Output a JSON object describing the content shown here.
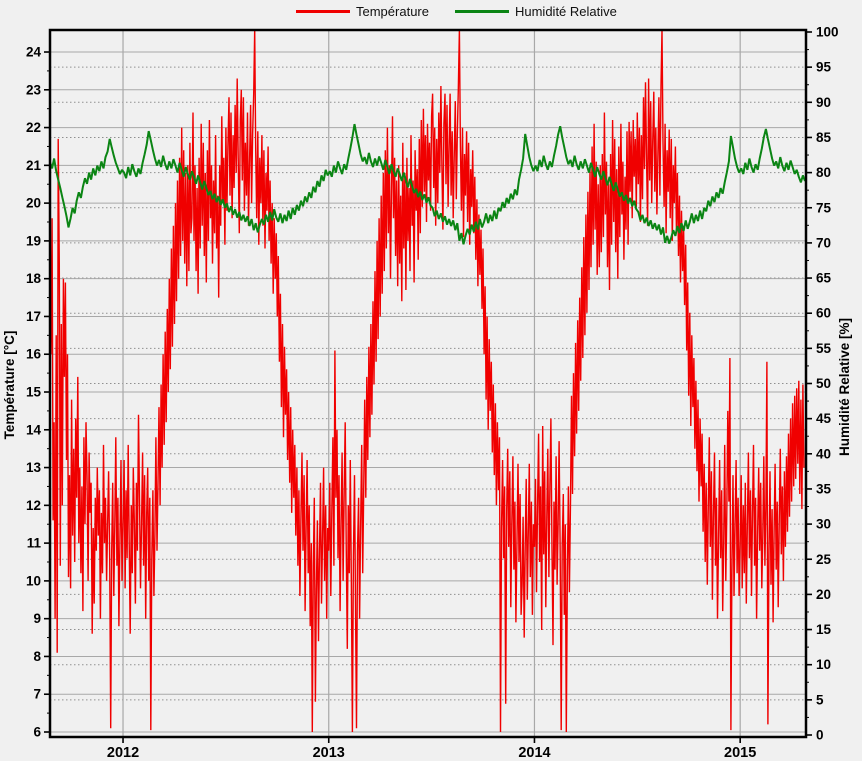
{
  "legend": {
    "items": [
      {
        "label": "Température",
        "color": "#f00000"
      },
      {
        "label": "Humidité Relative",
        "color": "#0b8514"
      }
    ]
  },
  "axes": {
    "x": {
      "min": 2011.645,
      "max": 2015.32,
      "tick_years": [
        2012,
        2013,
        2014,
        2015
      ],
      "tick_labels": [
        "2012",
        "2013",
        "2014",
        "2015"
      ]
    },
    "y_left": {
      "title": "Température [°C]",
      "tick_min": 6,
      "tick_max": 24,
      "tick_step": 1,
      "minor_step": 0.5,
      "color": "#000000"
    },
    "y_right": {
      "title": "Humidité Relative [%]",
      "tick_min": 0,
      "tick_max": 100,
      "tick_step": 5,
      "minor_step": 2.5,
      "color": "#000000"
    }
  },
  "grid": {
    "solid_color": "#a8a8a8",
    "dotted_color": "#8f8f8f",
    "frame_color": "#000000"
  },
  "chart_data": {
    "type": "line",
    "title": "",
    "xlabel": "",
    "x_unit": "year",
    "x_range": [
      2011.645,
      2015.32
    ],
    "left_axis": {
      "label": "Température [°C]",
      "range_ticks": [
        6,
        24
      ]
    },
    "right_axis": {
      "label": "Humidité Relative [%]",
      "range_ticks": [
        0,
        100
      ]
    },
    "legend_position": "top-center",
    "grid": "on",
    "series": [
      {
        "name": "Température",
        "axis": "left",
        "color": "#f00000",
        "width": 1.4,
        "t0": 2011.645,
        "dt": 0.005,
        "values": [
          20.2,
          16.0,
          19.6,
          11.6,
          14.2,
          9.0,
          16.5,
          8.1,
          21.7,
          18.4,
          10.4,
          16.8,
          12.0,
          18.0,
          15.4,
          17.9,
          13.2,
          16.0,
          10.1,
          12.8,
          9.8,
          14.8,
          11.2,
          13.5,
          10.5,
          14.3,
          12.2,
          15.4,
          11.0,
          13.0,
          10.2,
          12.5,
          9.2,
          13.8,
          11.5,
          14.2,
          12.8,
          10.0,
          13.4,
          11.8,
          12.6,
          8.6,
          11.4,
          9.4,
          12.2,
          10.8,
          13.0,
          11.2,
          12.4,
          9.0,
          11.8,
          10.2,
          13.6,
          11.0,
          12.2,
          10.0,
          11.5,
          12.9,
          10.6,
          6.1,
          10.8,
          12.6,
          9.6,
          11.5,
          13.8,
          10.4,
          12.2,
          8.8,
          11.0,
          13.2,
          10.0,
          11.4,
          13.2,
          9.8,
          12.4,
          10.6,
          13.6,
          11.0,
          8.6,
          12.0,
          10.2,
          13.0,
          11.6,
          9.4,
          12.6,
          10.8,
          14.4,
          12.2,
          9.8,
          11.4,
          13.4,
          10.4,
          12.8,
          9.0,
          11.8,
          13.0,
          10.0,
          12.2,
          6.05,
          10.6,
          12.4,
          9.6,
          11.2,
          13.8,
          10.8,
          12.6,
          14.6,
          12.0,
          15.2,
          13.0,
          16.0,
          13.6,
          16.6,
          14.2,
          17.2,
          15.0,
          18.0,
          15.6,
          18.8,
          16.2,
          19.4,
          16.8,
          20.0,
          17.4,
          20.6,
          18.0,
          21.2,
          18.6,
          22.0,
          19.0,
          21.4,
          18.4,
          20.8,
          17.8,
          21.0,
          18.2,
          21.6,
          19.2,
          19.6,
          22.4,
          19.0,
          21.0,
          18.2,
          20.4,
          17.6,
          21.2,
          18.8,
          22.1,
          19.4,
          21.6,
          18.6,
          20.8,
          17.9,
          21.4,
          19.0,
          22.2,
          19.6,
          21.0,
          18.4,
          20.6,
          19.2,
          21.8,
          18.8,
          20.2,
          17.5,
          21.0,
          19.4,
          22.3,
          20.0,
          21.2,
          18.9,
          22.0,
          19.8,
          21.5,
          22.8,
          20.2,
          22.4,
          19.6,
          21.8,
          20.4,
          22.6,
          20.8,
          23.3,
          21.2,
          19.2,
          22.2,
          23.0,
          20.6,
          22.8,
          19.8,
          21.6,
          20.2,
          22.4,
          19.4,
          21.0,
          22.6,
          20.0,
          21.8,
          22.9,
          24.6,
          21.4,
          19.6,
          21.9,
          18.9,
          21.2,
          20.0,
          21.8,
          19.4,
          21.4,
          18.8,
          20.8,
          19.8,
          21.5,
          19.0,
          20.6,
          18.4,
          20.0,
          17.6,
          19.6,
          18.0,
          19.2,
          17.0,
          18.6,
          15.8,
          17.6,
          14.6,
          16.8,
          13.8,
          16.2,
          14.4,
          15.6,
          13.2,
          15.0,
          12.6,
          14.6,
          11.8,
          14.0,
          12.2,
          13.6,
          11.2,
          13.0,
          10.4,
          12.4,
          9.6,
          11.8,
          13.4,
          10.8,
          12.8,
          9.2,
          11.4,
          13.2,
          10.2,
          12.0,
          8.8,
          11.0,
          6.0,
          10.4,
          12.2,
          6.8,
          9.8,
          11.6,
          8.4,
          10.8,
          12.6,
          9.4,
          11.2,
          13.0,
          10.0,
          12.0,
          9.0,
          11.4,
          10.8,
          12.6,
          9.6,
          11.8,
          13.8,
          10.4,
          16.1,
          12.2,
          14.0,
          10.6,
          12.8,
          9.2,
          11.6,
          13.4,
          10.0,
          12.4,
          14.2,
          11.0,
          8.2,
          12.0,
          10.2,
          13.2,
          9.8,
          6.0,
          10.6,
          12.8,
          9.4,
          6.1,
          10.8,
          12.2,
          9.0,
          11.4,
          13.6,
          10.2,
          12.4,
          14.8,
          12.2,
          15.4,
          13.2,
          16.2,
          13.8,
          16.8,
          14.4,
          17.4,
          15.2,
          18.2,
          15.8,
          19.0,
          16.4,
          19.6,
          17.0,
          20.2,
          17.6,
          20.8,
          18.2,
          21.4,
          18.8,
          22.0,
          19.2,
          21.0,
          18.0,
          20.4,
          22.3,
          19.6,
          21.2,
          18.6,
          20.6,
          17.8,
          21.0,
          18.4,
          20.2,
          17.4,
          21.6,
          18.8,
          20.8,
          17.7,
          21.2,
          19.0,
          20.4,
          18.2,
          21.8,
          19.4,
          20.6,
          17.9,
          21.4,
          19.8,
          20.9,
          18.5,
          21.7,
          19.2,
          22.2,
          19.9,
          22.5,
          20.3,
          21.8,
          19.5,
          22.1,
          20.6,
          21.6,
          19.8,
          22.3,
          22.9,
          20.4,
          22.0,
          19.4,
          21.7,
          20.0,
          22.4,
          20.8,
          23.1,
          21.0,
          19.3,
          22.1,
          22.9,
          20.5,
          22.6,
          19.9,
          21.5,
          22.9,
          20.2,
          21.9,
          19.6,
          21.2,
          22.7,
          20.1,
          21.8,
          23.0,
          24.6,
          21.5,
          19.8,
          22.0,
          19.1,
          21.3,
          20.2,
          21.9,
          19.5,
          21.6,
          18.9,
          20.9,
          19.9,
          21.4,
          19.2,
          20.7,
          18.5,
          20.1,
          17.8,
          19.7,
          18.1,
          19.3,
          17.2,
          18.8,
          16.0,
          17.8,
          14.8,
          17.0,
          14.0,
          16.4,
          14.5,
          15.8,
          13.4,
          15.2,
          12.8,
          14.7,
          12.0,
          14.2,
          12.4,
          13.8,
          6.0,
          11.4,
          13.2,
          10.6,
          12.5,
          6.75,
          11.9,
          13.5,
          10.9,
          12.9,
          9.3,
          11.5,
          13.3,
          10.3,
          12.1,
          8.9,
          11.1,
          13.1,
          10.5,
          12.3,
          9.1,
          9.9,
          11.7,
          8.5,
          10.9,
          12.7,
          9.5,
          11.3,
          13.1,
          10.1,
          12.1,
          9.1,
          11.5,
          10.9,
          12.7,
          9.7,
          11.9,
          13.9,
          10.5,
          12.5,
          8.7,
          14.1,
          10.7,
          12.9,
          9.3,
          11.7,
          13.5,
          10.1,
          12.5,
          14.3,
          11.1,
          8.3,
          12.1,
          10.3,
          13.3,
          9.9,
          11.5,
          13.7,
          10.7,
          6.05,
          10.9,
          12.3,
          9.1,
          11.5,
          6.0,
          10.3,
          12.5,
          9.7,
          12.1,
          14.9,
          12.3,
          15.5,
          13.3,
          16.3,
          13.9,
          16.9,
          14.5,
          17.5,
          15.3,
          18.3,
          15.9,
          19.1,
          16.5,
          19.7,
          17.1,
          20.3,
          17.7,
          20.9,
          18.3,
          21.5,
          18.9,
          22.1,
          19.3,
          21.1,
          18.1,
          20.5,
          18.3,
          21.0,
          18.7,
          21.3,
          19.1,
          22.4,
          19.7,
          21.1,
          18.3,
          20.5,
          17.7,
          21.3,
          18.9,
          22.2,
          19.5,
          21.7,
          18.7,
          20.9,
          18.0,
          21.5,
          19.1,
          22.1,
          19.7,
          21.1,
          18.5,
          20.7,
          19.3,
          21.9,
          18.9,
          22.15,
          20.3,
          21.9,
          19.6,
          22.2,
          20.7,
          21.7,
          19.9,
          22.4,
          20.5,
          22.0,
          19.5,
          21.8,
          20.1,
          22.8,
          20.9,
          23.2,
          21.1,
          19.4,
          23.3,
          20.6,
          22.7,
          20.0,
          21.6,
          22.95,
          20.3,
          22.0,
          19.7,
          21.3,
          22.8,
          20.2,
          23.1,
          24.6,
          21.6,
          19.9,
          22.1,
          19.2,
          21.4,
          20.3,
          21.95,
          19.6,
          21.7,
          19.0,
          21.0,
          20.0,
          21.5,
          19.3,
          20.8,
          18.6,
          20.2,
          17.9,
          19.8,
          18.2,
          19.4,
          17.3,
          18.9,
          16.1,
          17.9,
          14.9,
          17.1,
          14.1,
          16.5,
          14.6,
          15.9,
          13.5,
          15.3,
          12.9,
          14.8,
          12.1,
          14.3,
          12.5,
          13.9,
          11.3,
          13.1,
          10.5,
          12.6,
          9.9,
          12.0,
          13.8,
          10.9,
          12.9,
          9.5,
          11.7,
          13.4,
          10.4,
          12.2,
          9.0,
          11.2,
          13.2,
          10.6,
          12.4,
          9.2,
          11.0,
          13.6,
          10.0,
          11.8,
          14.5,
          12.1,
          15.9,
          6.05,
          10.2,
          12.8,
          9.6,
          11.4,
          13.2,
          10.2,
          12.2,
          9.6,
          11.0,
          12.8,
          9.8,
          12.0,
          10.2,
          12.6,
          9.4,
          11.6,
          13.4,
          10.6,
          12.4,
          9.6,
          11.8,
          13.6,
          10.4,
          12.2,
          9.0,
          11.4,
          13.0,
          10.8,
          12.6,
          9.8,
          11.2,
          13.3,
          10.4,
          12.0,
          15.8,
          6.2,
          10.8,
          12.9,
          9.9,
          11.9,
          8.9,
          11.3,
          13.1,
          10.3,
          12.1,
          9.3,
          11.7,
          13.5,
          10.7,
          12.5,
          10.0,
          12.9,
          10.9,
          13.3,
          11.3,
          13.9,
          11.7,
          14.3,
          12.1,
          14.7,
          12.5,
          14.9,
          12.7,
          15.1,
          13.1,
          15.3,
          12.3,
          14.8,
          11.9,
          15.2,
          13.0
        ]
      },
      {
        "name": "Humidité Relative",
        "axis": "right",
        "color": "#0b8514",
        "width": 2,
        "t0": 2011.645,
        "dt": 0.01,
        "values": [
          81.5,
          80.6,
          82.0,
          80.2,
          79.0,
          77.8,
          76.5,
          75.2,
          73.8,
          72.2,
          73.5,
          75.0,
          74.2,
          76.0,
          77.2,
          76.4,
          78.0,
          79.2,
          78.4,
          80.0,
          79.0,
          80.6,
          79.6,
          81.0,
          80.2,
          81.6,
          80.6,
          82.2,
          83.0,
          84.8,
          83.6,
          82.4,
          81.4,
          80.6,
          79.8,
          80.4,
          80.0,
          79.2,
          80.8,
          79.6,
          81.2,
          80.2,
          79.4,
          80.6,
          79.8,
          81.4,
          82.6,
          84.0,
          85.9,
          84.6,
          83.2,
          82.0,
          81.0,
          81.8,
          80.8,
          82.4,
          81.2,
          80.4,
          81.6,
          80.6,
          81.9,
          81.0,
          80.0,
          81.4,
          80.4,
          79.4,
          80.8,
          79.8,
          79.0,
          80.2,
          79.4,
          78.4,
          79.6,
          78.6,
          77.6,
          78.8,
          77.8,
          76.8,
          77.4,
          76.2,
          77.0,
          75.8,
          76.6,
          75.4,
          76.2,
          75.0,
          75.6,
          74.4,
          75.2,
          74.0,
          74.8,
          73.6,
          74.4,
          73.2,
          74.0,
          73.0,
          73.8,
          72.4,
          73.4,
          71.8,
          72.8,
          71.5,
          72.6,
          73.4,
          72.6,
          74.0,
          73.0,
          74.4,
          73.2,
          74.8,
          73.6,
          73.0,
          74.2,
          72.8,
          74.0,
          73.1,
          74.6,
          73.4,
          75.0,
          74.0,
          75.4,
          74.6,
          76.0,
          75.2,
          76.6,
          75.8,
          77.2,
          76.4,
          78.0,
          77.2,
          78.8,
          78.0,
          79.6,
          78.8,
          80.4,
          79.6,
          80.2,
          79.4,
          81.0,
          80.0,
          81.6,
          80.6,
          79.8,
          81.2,
          80.4,
          82.0,
          83.4,
          85.0,
          86.9,
          85.4,
          84.0,
          82.6,
          81.6,
          82.2,
          81.2,
          82.8,
          81.6,
          80.8,
          82.0,
          81.0,
          82.3,
          81.4,
          80.4,
          81.8,
          80.8,
          79.8,
          81.2,
          80.2,
          79.4,
          80.6,
          79.8,
          78.8,
          80.0,
          78.9,
          77.9,
          79.1,
          78.1,
          77.1,
          77.7,
          76.5,
          77.3,
          76.1,
          76.9,
          75.7,
          76.5,
          75.3,
          75.0,
          73.8,
          74.6,
          73.4,
          74.2,
          73.0,
          73.8,
          72.6,
          73.4,
          72.4,
          73.2,
          71.8,
          72.8,
          70.3,
          71.4,
          69.8,
          71.0,
          72.0,
          71.2,
          72.6,
          71.6,
          73.0,
          71.9,
          73.4,
          72.2,
          73.0,
          74.2,
          72.8,
          74.0,
          73.1,
          74.6,
          73.4,
          75.0,
          74.5,
          75.8,
          75.0,
          76.4,
          75.6,
          77.0,
          76.2,
          77.6,
          76.8,
          79.0,
          80.4,
          82.0,
          85.5,
          83.8,
          82.2,
          81.0,
          80.2,
          81.0,
          80.2,
          81.8,
          80.8,
          82.4,
          81.2,
          80.4,
          81.6,
          80.8,
          82.4,
          83.8,
          85.4,
          86.6,
          85.0,
          83.6,
          82.2,
          81.2,
          81.8,
          80.8,
          82.4,
          81.2,
          80.4,
          81.6,
          80.6,
          81.9,
          81.0,
          80.0,
          81.4,
          80.4,
          79.4,
          80.8,
          79.8,
          79.0,
          80.2,
          79.2,
          78.2,
          79.4,
          78.4,
          77.4,
          78.6,
          77.6,
          76.6,
          77.2,
          76.0,
          76.8,
          75.6,
          76.4,
          75.2,
          76.0,
          74.8,
          74.4,
          73.2,
          74.0,
          72.8,
          73.6,
          72.4,
          73.2,
          72.0,
          72.8,
          71.8,
          72.6,
          71.2,
          72.2,
          70.0,
          71.0,
          69.9,
          70.8,
          71.8,
          71.0,
          72.4,
          71.4,
          72.8,
          71.7,
          73.2,
          72.0,
          73.0,
          74.2,
          72.8,
          74.0,
          73.1,
          74.6,
          73.4,
          75.0,
          74.5,
          76.0,
          75.2,
          76.6,
          75.8,
          77.2,
          76.4,
          77.8,
          77.0,
          78.6,
          80.0,
          81.6,
          85.2,
          83.6,
          82.0,
          80.8,
          80.0,
          80.6,
          79.8,
          81.4,
          80.4,
          82.0,
          80.8,
          80.0,
          81.2,
          80.4,
          82.0,
          83.4,
          85.0,
          86.2,
          84.8,
          83.4,
          82.0,
          81.0,
          81.6,
          80.6,
          82.2,
          81.0,
          80.2,
          81.4,
          80.4,
          81.7,
          80.8,
          79.8,
          80.4,
          79.4,
          78.6,
          79.6,
          78.8
        ]
      }
    ]
  }
}
